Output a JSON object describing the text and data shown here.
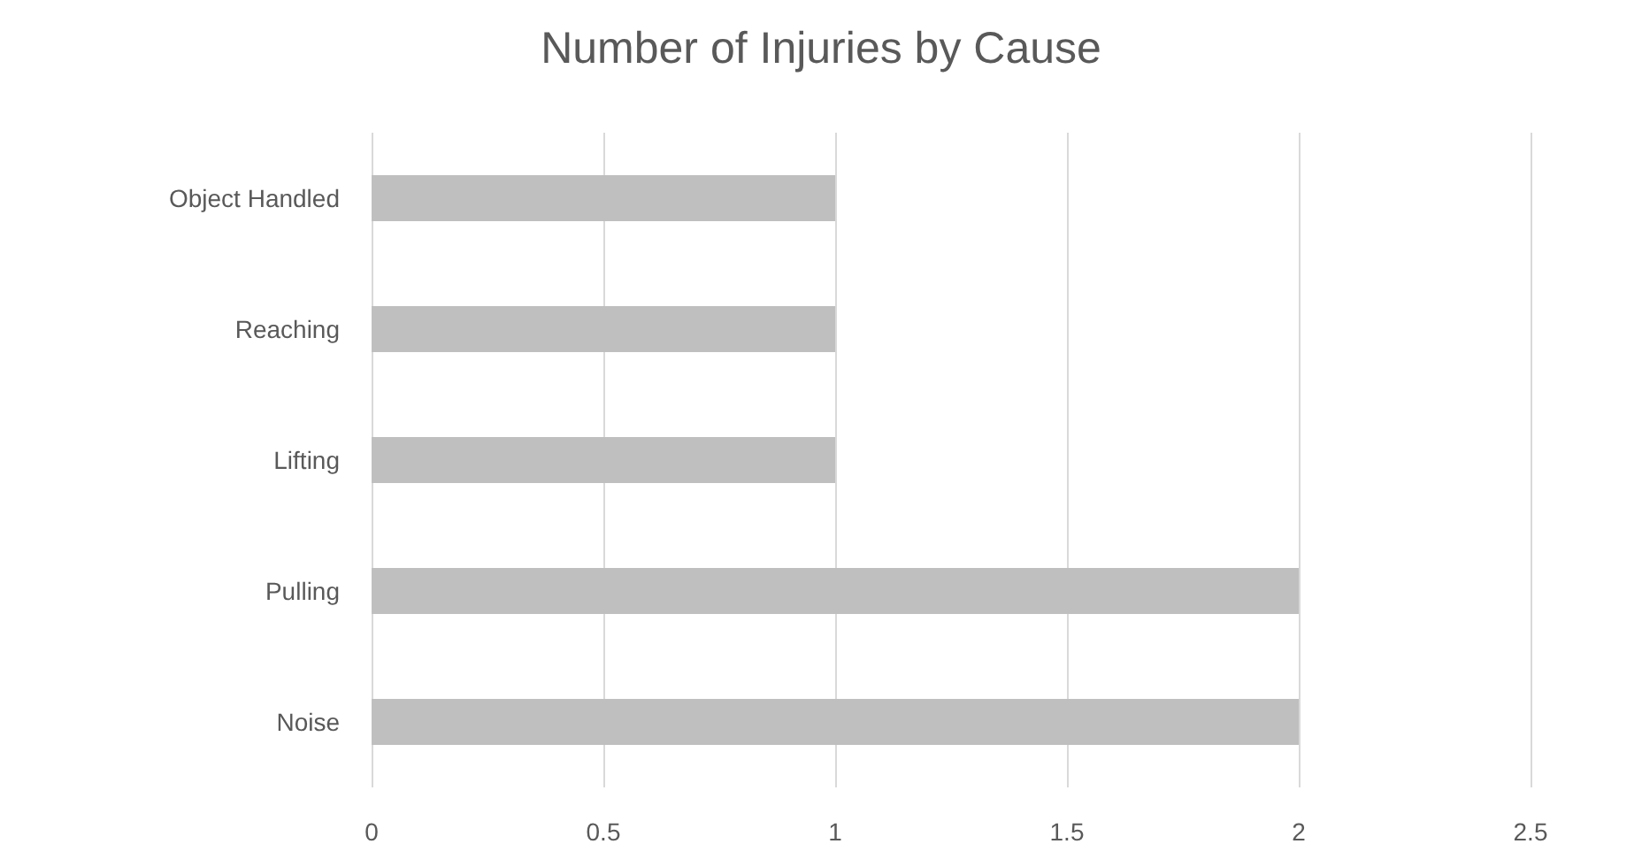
{
  "chart_data": {
    "type": "bar",
    "title": "Number of Injuries by Cause",
    "orientation": "horizontal",
    "categories": [
      "Object Handled",
      "Reaching",
      "Lifting",
      "Pulling",
      "Noise"
    ],
    "values": [
      1,
      1,
      1,
      2,
      2
    ],
    "color": "#bfbfbf",
    "xlim": [
      0,
      2.5
    ],
    "xticks": [
      0,
      0.5,
      1,
      1.5,
      2,
      2.5
    ],
    "grid": "x"
  }
}
